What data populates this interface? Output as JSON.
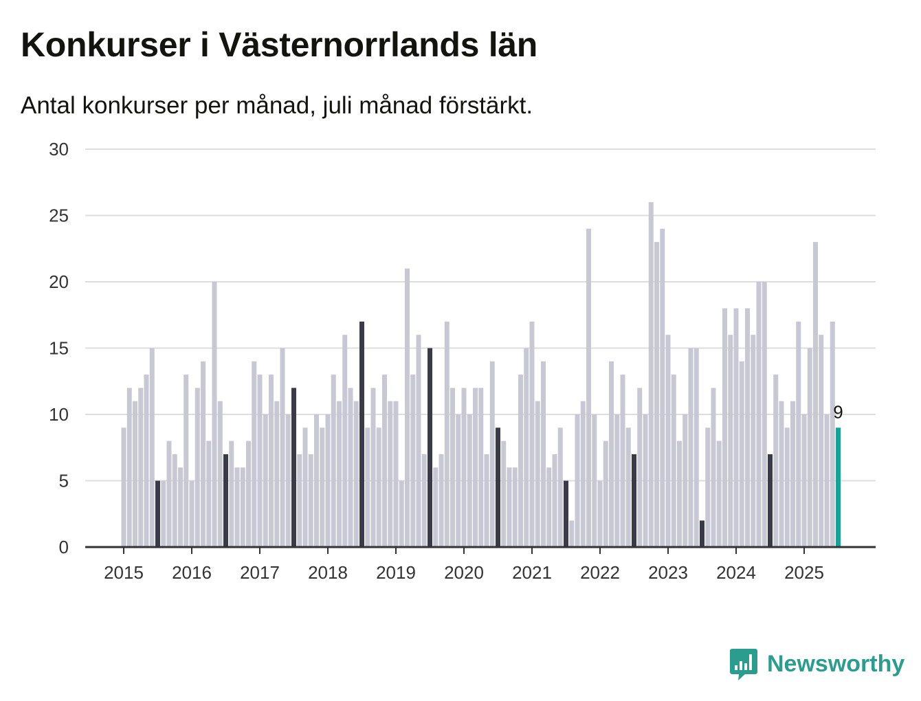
{
  "title": "Konkurser i Västernorrlands län",
  "subtitle": "Antal konkurser per månad, juli månad förstärkt.",
  "brand": {
    "name": "Newsworthy",
    "icon": "newsworthy-logo-icon",
    "color": "#2a9d8f"
  },
  "colors": {
    "bar": "#c8c7d4",
    "highlight_month": "#3b3a48",
    "latest": "#14a396",
    "grid": "#dddddd",
    "axis": "#333333"
  },
  "chart_data": {
    "type": "bar",
    "title": "Konkurser i Västernorrlands län",
    "subtitle": "Antal konkurser per månad, juli månad förstärkt.",
    "xlabel": "",
    "ylabel": "",
    "ylim": [
      0,
      30
    ],
    "yticks": [
      "0",
      "5",
      "10",
      "15",
      "20",
      "25",
      "30"
    ],
    "xticks": [
      "2015",
      "2016",
      "2017",
      "2018",
      "2019",
      "2020",
      "2021",
      "2022",
      "2023",
      "2024",
      "2025"
    ],
    "start": "2015-01",
    "end": "2025-07",
    "highlight_month": 7,
    "grid": true,
    "values": [
      9,
      12,
      11,
      12,
      13,
      15,
      5,
      5,
      8,
      7,
      6,
      13,
      5,
      12,
      14,
      8,
      20,
      11,
      7,
      8,
      6,
      6,
      8,
      14,
      13,
      10,
      13,
      11,
      15,
      10,
      12,
      7,
      9,
      7,
      10,
      9,
      10,
      13,
      11,
      16,
      12,
      11,
      17,
      9,
      12,
      9,
      13,
      11,
      11,
      5,
      21,
      13,
      16,
      7,
      15,
      6,
      7,
      17,
      12,
      10,
      12,
      10,
      12,
      12,
      7,
      14,
      9,
      8,
      6,
      6,
      13,
      15,
      17,
      11,
      14,
      6,
      7,
      9,
      5,
      2,
      10,
      11,
      24,
      10,
      5,
      8,
      14,
      10,
      13,
      9,
      7,
      12,
      10,
      26,
      23,
      24,
      16,
      13,
      8,
      10,
      15,
      15,
      2,
      9,
      12,
      8,
      18,
      16,
      18,
      14,
      18,
      16,
      20,
      20,
      7,
      13,
      11,
      9,
      11,
      17,
      10,
      15,
      23,
      16,
      10,
      17,
      9
    ],
    "annotations": [
      {
        "label": "9",
        "month": "2025-07"
      }
    ]
  }
}
